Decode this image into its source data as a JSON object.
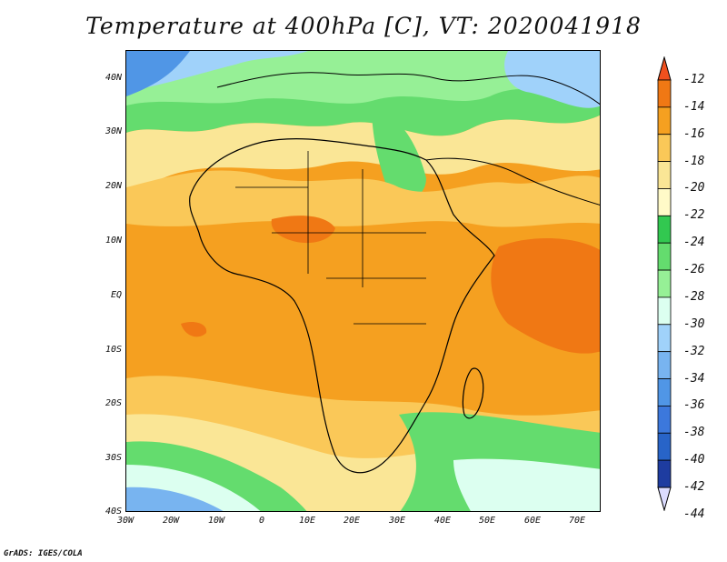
{
  "title": "Temperature at 400hPa [C], VT: 2020041918",
  "credit": "GrADS: IGES/COLA",
  "axes": {
    "y_labels": [
      "40N",
      "30N",
      "20N",
      "10N",
      "EQ",
      "10S",
      "20S",
      "30S",
      "40S"
    ],
    "x_labels": [
      "30W",
      "20W",
      "10W",
      "0",
      "10E",
      "20E",
      "30E",
      "40E",
      "50E",
      "60E",
      "70E"
    ]
  },
  "colorbar": {
    "labels": [
      "-12",
      "-14",
      "-16",
      "-18",
      "-20",
      "-22",
      "-24",
      "-26",
      "-28",
      "-30",
      "-32",
      "-34",
      "-36",
      "-38",
      "-40",
      "-42",
      "-44"
    ],
    "colors": [
      "#f0501e",
      "#f07814",
      "#f5a020",
      "#fac858",
      "#fae696",
      "#fffac8",
      "#32c850",
      "#64dc6e",
      "#96f096",
      "#dcfff0",
      "#a0d2fa",
      "#78b4f0",
      "#5096e6",
      "#3c78dc",
      "#2864c8",
      "#1e3ca0",
      "#0a1464"
    ]
  }
}
